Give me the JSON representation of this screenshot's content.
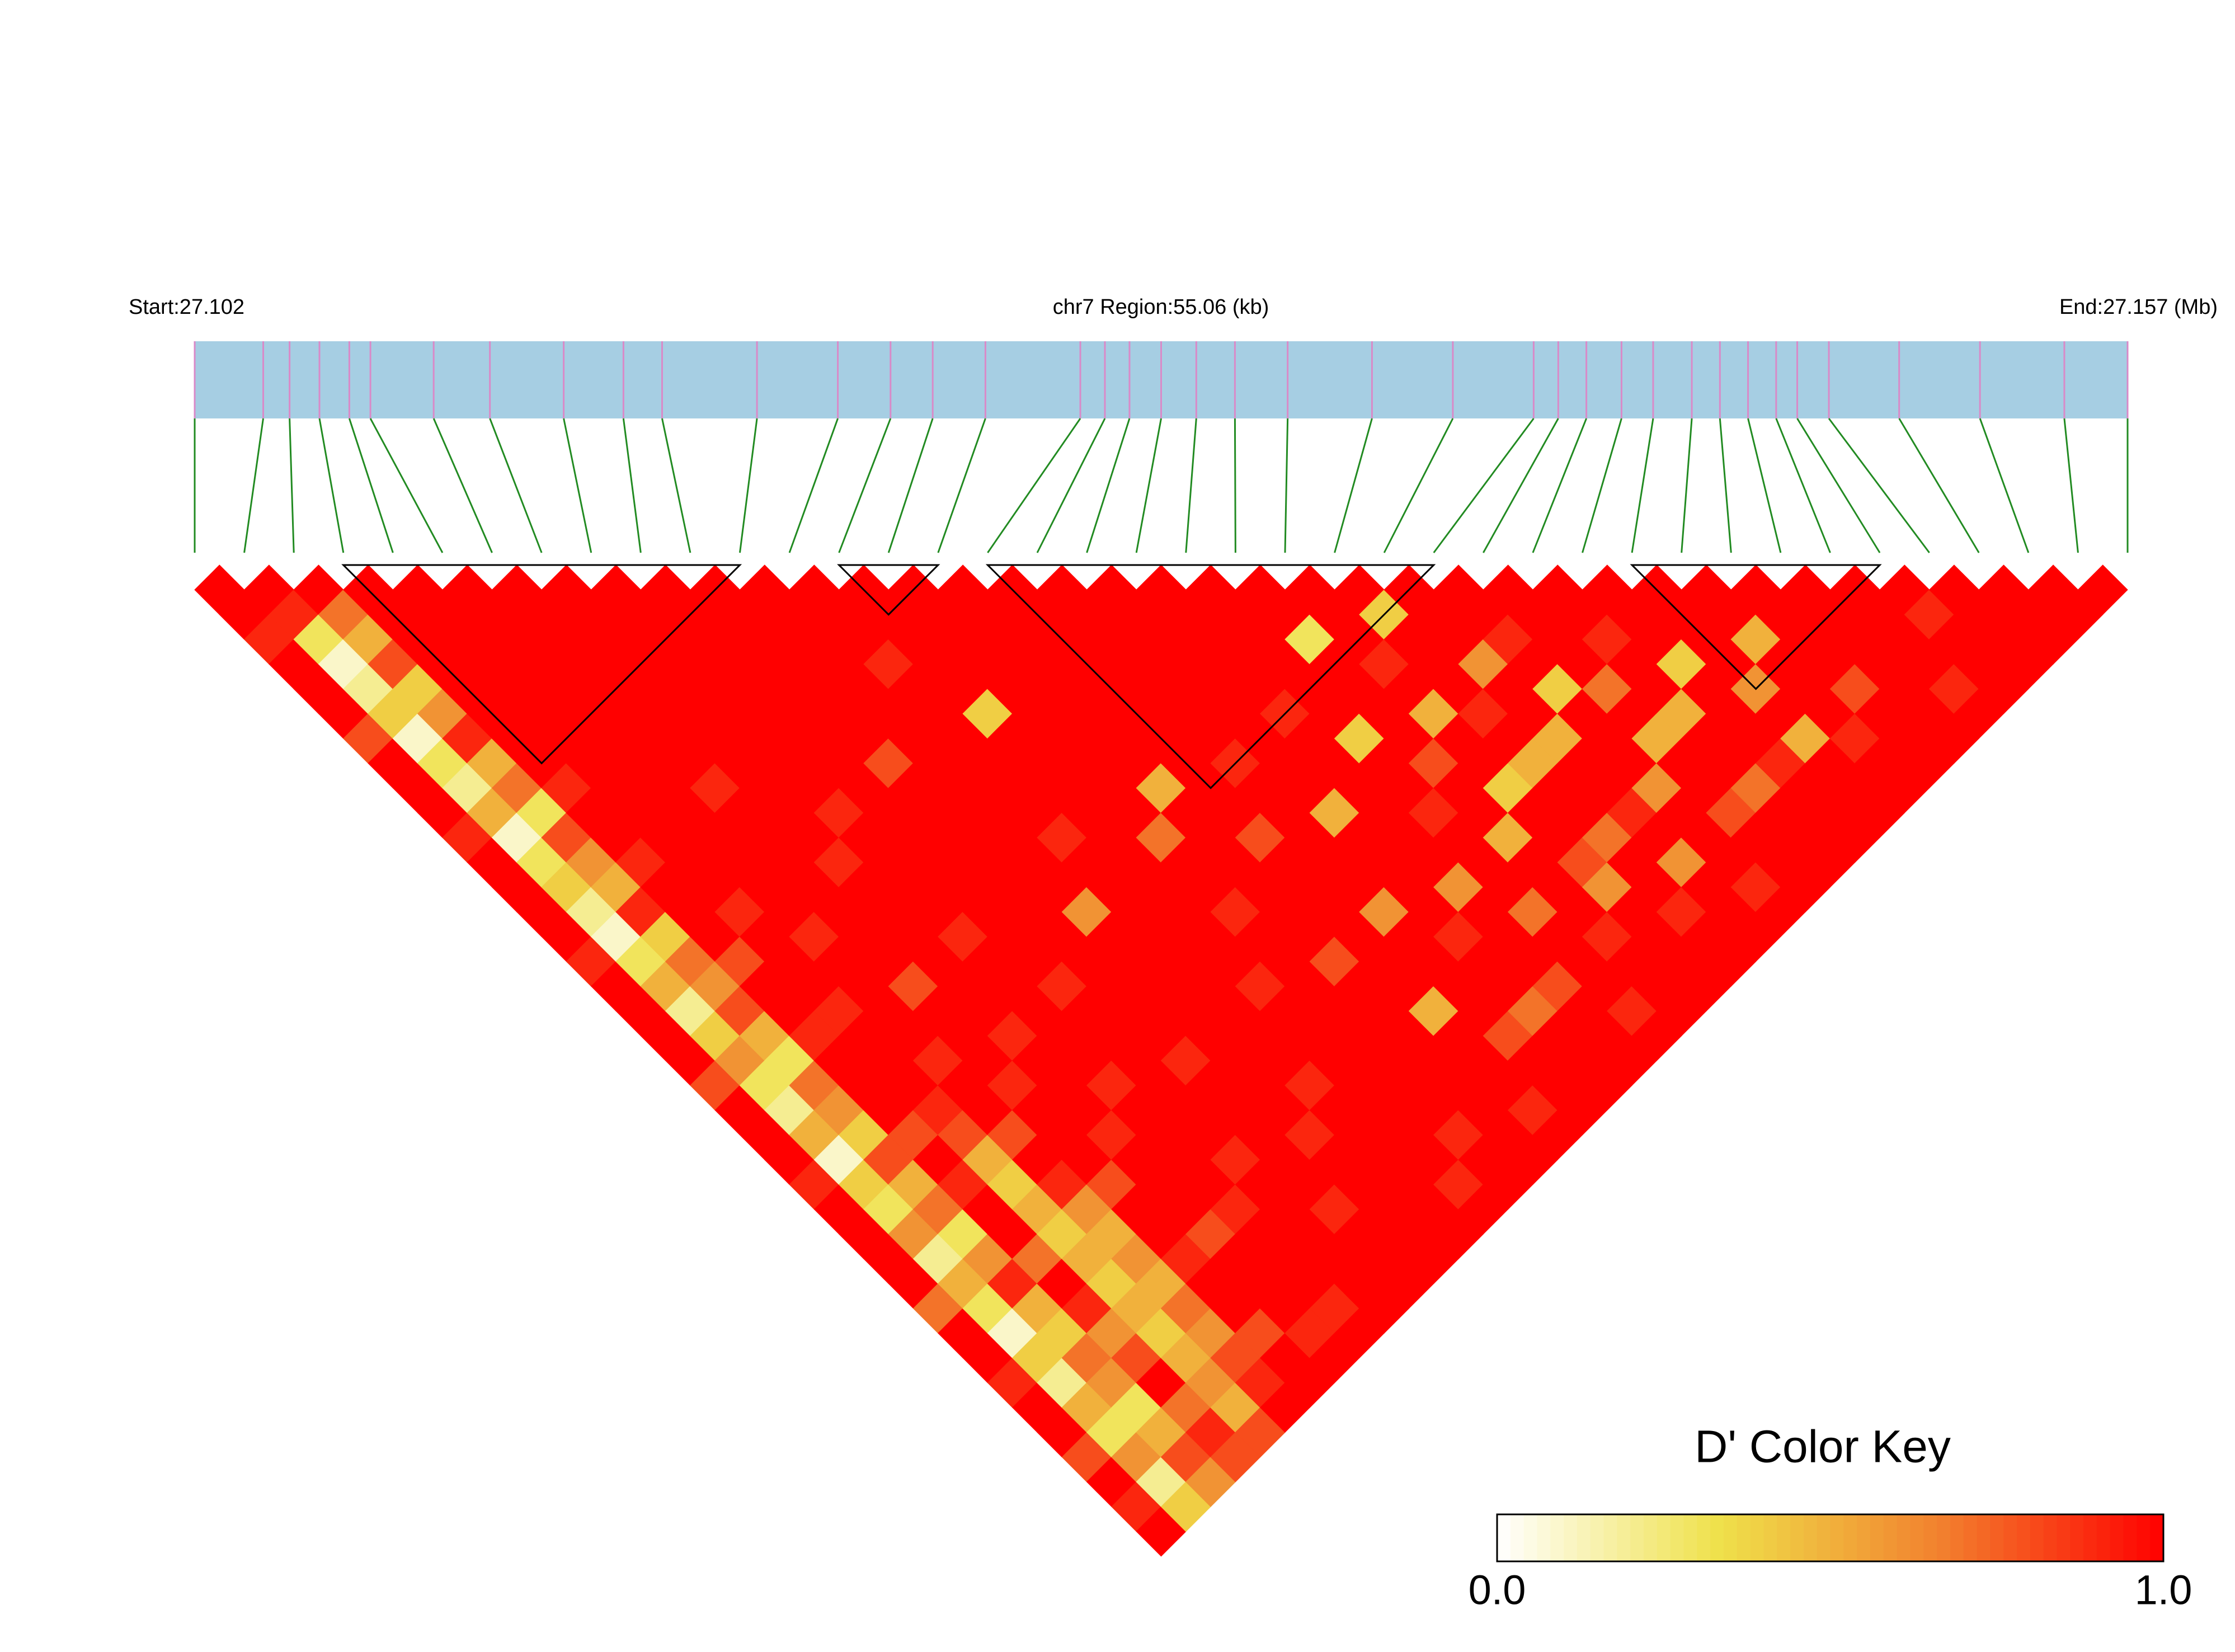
{
  "chart_data": {
    "type": "ld_heatmap",
    "start_label": "Start:27.102",
    "region_label": "chr7 Region:55.06 (kb)",
    "end_label": "End:27.157 (Mb)",
    "xlim": [
      27.102,
      27.157
    ],
    "positions": [
      27.102,
      27.10395,
      27.1047,
      27.10555,
      27.1064,
      27.107,
      27.1088,
      27.1104,
      27.1125,
      27.1142,
      27.1153,
      27.118,
      27.1203,
      27.1218,
      27.123,
      27.1245,
      27.1272,
      27.1279,
      27.1286,
      27.1295,
      27.1305,
      27.1316,
      27.1331,
      27.1355,
      27.1378,
      27.1401,
      27.1408,
      27.1416,
      27.1426,
      27.1435,
      27.1446,
      27.1454,
      27.1462,
      27.147,
      27.1476,
      27.1485,
      27.1505,
      27.1528,
      27.1552,
      27.157
    ],
    "ld": [
      [
        1,
        1,
        0.9,
        1,
        1,
        1,
        0.8,
        1,
        1,
        1,
        0.9,
        1,
        1,
        1,
        1,
        0.9,
        1,
        1,
        1,
        1,
        0.8,
        1,
        1,
        1,
        0.9,
        1,
        1,
        1,
        1,
        0.7,
        1,
        1,
        0.9,
        1,
        1,
        0.8,
        1,
        0.9,
        1
      ],
      [
        1,
        0.9,
        0.3,
        0.1,
        0.2,
        0.4,
        0.1,
        0.3,
        0.2,
        0.5,
        0.1,
        0.3,
        0.4,
        0.2,
        0.1,
        0.3,
        0.5,
        0.2,
        0.4,
        0.6,
        0.3,
        0.2,
        0.5,
        0.1,
        0.4,
        0.3,
        0.6,
        0.2,
        0.5,
        0.3,
        0.1,
        0.4,
        0.2,
        0.5,
        0.3,
        0.6,
        0.2,
        0.4
      ],
      [
        1,
        0.7,
        0.5,
        0.8,
        0.4,
        0.6,
        0.9,
        0.5,
        0.7,
        0.3,
        0.8,
        0.6,
        0.5,
        0.9,
        0.4,
        0.7,
        0.6,
        0.8,
        0.5,
        0.3,
        0.7,
        0.6,
        0.4,
        0.8,
        0.5,
        0.7,
        0.3,
        0.6,
        0.9,
        0.5,
        0.4,
        0.7,
        0.6,
        0.3,
        0.5,
        0.8,
        0.6
      ],
      [
        1,
        1,
        1,
        1,
        1,
        1,
        1,
        1,
        0.9,
        1,
        1,
        0.9,
        1,
        1,
        1,
        0.8,
        1,
        1,
        0.9,
        1,
        1,
        1,
        0.8,
        1,
        0.9,
        1,
        1,
        0.7,
        1,
        0.9,
        0.6,
        0.8,
        1,
        0.7,
        0.9,
        0.8
      ],
      [
        1,
        1,
        1,
        1,
        1,
        1,
        1,
        1,
        1,
        1,
        1,
        1,
        1,
        0.9,
        1,
        1,
        1,
        0.9,
        1,
        1,
        1,
        0.9,
        0.8,
        0.5,
        0.4,
        0.5,
        0.4,
        0.5,
        0.4,
        0.5,
        0.4,
        0.5,
        0.6,
        0.5,
        0.8
      ],
      [
        1,
        1,
        1,
        1,
        1,
        1,
        1,
        1,
        1,
        1,
        1,
        1,
        1,
        1,
        0.9,
        1,
        1,
        1,
        1,
        0.9,
        1,
        1,
        0.8,
        1,
        0.9,
        0.6,
        0.5,
        0.6,
        0.5,
        0.7,
        0.6,
        0.8,
        0.9,
        1
      ],
      [
        1,
        1,
        1,
        1,
        1,
        1,
        1,
        1,
        0.9,
        1,
        1,
        1,
        1,
        1,
        1,
        1,
        0.8,
        1,
        1,
        1,
        0.9,
        1,
        1,
        1,
        0.8,
        1,
        1,
        0.9,
        1,
        1,
        0.8,
        1,
        1
      ],
      [
        1,
        1,
        1,
        1,
        1,
        1,
        1,
        1,
        1,
        1,
        1,
        0.9,
        1,
        1,
        1,
        1,
        1,
        1,
        0.9,
        1,
        1,
        1,
        0.9,
        1,
        1,
        1,
        0.8,
        1,
        1,
        1,
        0.9,
        1
      ],
      [
        1,
        1,
        1,
        1,
        1,
        1,
        1,
        1,
        1,
        0.9,
        1,
        1,
        1,
        1,
        0.9,
        1,
        1,
        1,
        1,
        1,
        0.9,
        1,
        1,
        1,
        1,
        0.9,
        1,
        1,
        1,
        0.9,
        1
      ],
      [
        1,
        1,
        1,
        1,
        1,
        1,
        1,
        1,
        1,
        1,
        1,
        1,
        1,
        1,
        1,
        1,
        0.9,
        1,
        1,
        1,
        1,
        1,
        1,
        0.9,
        1,
        1,
        1,
        1,
        1,
        1
      ],
      [
        1,
        1,
        1,
        1,
        1,
        1,
        1,
        0.8,
        1,
        1,
        1,
        1,
        1,
        1,
        1,
        1,
        1,
        1,
        1,
        0.9,
        1,
        1,
        1,
        1,
        1,
        0.9,
        1,
        1,
        1
      ],
      [
        1,
        1,
        1,
        1,
        1,
        1,
        1,
        1,
        1,
        1,
        1,
        1,
        1,
        0.6,
        1,
        1,
        1,
        1,
        1,
        1,
        1,
        1,
        0.9,
        1,
        1,
        1,
        1,
        1
      ],
      [
        1,
        1,
        1,
        0.9,
        1,
        1,
        1,
        1,
        1,
        1,
        0.9,
        1,
        1,
        1,
        1,
        1,
        1,
        1,
        1,
        1,
        0.9,
        1,
        1,
        1,
        1,
        1,
        1
      ],
      [
        1,
        1,
        1,
        1,
        1,
        0.4,
        1,
        1,
        1,
        1,
        1,
        1,
        1,
        1,
        1,
        1,
        0.9,
        1,
        1,
        1,
        1,
        1,
        1,
        1,
        0.9,
        1
      ],
      [
        1,
        1,
        1,
        1,
        1,
        1,
        1,
        1,
        1,
        1,
        0.7,
        1,
        1,
        0.9,
        1,
        1,
        1,
        1,
        1,
        1,
        1,
        1,
        0.9,
        1,
        1
      ],
      [
        1,
        1,
        1,
        1,
        1,
        1,
        1,
        1,
        0.5,
        1,
        1,
        1,
        1,
        1,
        1,
        0.8,
        1,
        1,
        1,
        1,
        1,
        1,
        1,
        1
      ],
      [
        1,
        1,
        1,
        1,
        1,
        1,
        1,
        1,
        1,
        1,
        0.8,
        1,
        1,
        1,
        1,
        1,
        1,
        0.5,
        1,
        1,
        1,
        0.9,
        1
      ],
      [
        1,
        1,
        1,
        1,
        1,
        1,
        1,
        0.9,
        1,
        1,
        1,
        1,
        1,
        0.6,
        1,
        1,
        1,
        1,
        0.8,
        1,
        1,
        1
      ],
      [
        1,
        1,
        1,
        1,
        1,
        1,
        1,
        1,
        1,
        0.5,
        1,
        1,
        1,
        1,
        0.9,
        1,
        1,
        0.7,
        1,
        1,
        1
      ],
      [
        1,
        1,
        1,
        1,
        1,
        0.9,
        1,
        1,
        1,
        1,
        1,
        1,
        0.6,
        1,
        1,
        1,
        0.8,
        1,
        1,
        1
      ],
      [
        1,
        1,
        1,
        1,
        1,
        1,
        0.4,
        1,
        1,
        0.9,
        1,
        1,
        1,
        0.7,
        1,
        1,
        1,
        0.9,
        1
      ],
      [
        1,
        1,
        0.3,
        1,
        1,
        1,
        1,
        0.8,
        1,
        1,
        0.5,
        1,
        1,
        1,
        0.9,
        1,
        1,
        1
      ],
      [
        1,
        1,
        1,
        0.9,
        1,
        0.5,
        1,
        1,
        0.4,
        1,
        1,
        0.8,
        0.6,
        1,
        1,
        1,
        1
      ],
      [
        1,
        0.4,
        1,
        1,
        1,
        0.9,
        1,
        0.5,
        1,
        1,
        0.7,
        1,
        1,
        0.9,
        1,
        1
      ],
      [
        1,
        1,
        1,
        0.6,
        1,
        1,
        0.5,
        1,
        1,
        0.9,
        1,
        0.6,
        1,
        1,
        1
      ],
      [
        1,
        1,
        0.9,
        1,
        0.4,
        1,
        1,
        1,
        0.6,
        1,
        1,
        1,
        0.9,
        1
      ],
      [
        1,
        1,
        1,
        1,
        0.7,
        1,
        0.5,
        1,
        1,
        0.8,
        1,
        1,
        1
      ],
      [
        1,
        1,
        0.9,
        1,
        1,
        0.5,
        1,
        1,
        0.7,
        1,
        1,
        1
      ],
      [
        1,
        1,
        1,
        0.4,
        1,
        1,
        1,
        0.9,
        1,
        1,
        1
      ],
      [
        1,
        1,
        1,
        1,
        0.6,
        1,
        0.5,
        1,
        1,
        1
      ],
      [
        1,
        1,
        0.5,
        1,
        1,
        1,
        0.9,
        1,
        1
      ],
      [
        1,
        1,
        1,
        1,
        0.8,
        1,
        1,
        1
      ],
      [
        1,
        1,
        1,
        1,
        1,
        1,
        1
      ],
      [
        1,
        1,
        1,
        1,
        0.9,
        1
      ],
      [
        1,
        0.9,
        1,
        1,
        1
      ],
      [
        1,
        1,
        1,
        1
      ],
      [
        1,
        1,
        1
      ],
      [
        1,
        1
      ],
      [
        1
      ]
    ],
    "blocks": [
      [
        3,
        11
      ],
      [
        13,
        15
      ],
      [
        16,
        25
      ],
      [
        29,
        34
      ]
    ],
    "bar_color": "#a6cee3",
    "snp_line_color": "#d98ac8",
    "link_color": "#228b22",
    "block_color": "#000000",
    "colors": [
      "#ffffff",
      "#efe14a",
      "#f2802e",
      "#ff0000"
    ],
    "key": {
      "title": "D' Color Key",
      "ticks": [
        {
          "value": 0,
          "label": "0.0"
        },
        {
          "value": 1,
          "label": "1.0"
        }
      ]
    }
  }
}
